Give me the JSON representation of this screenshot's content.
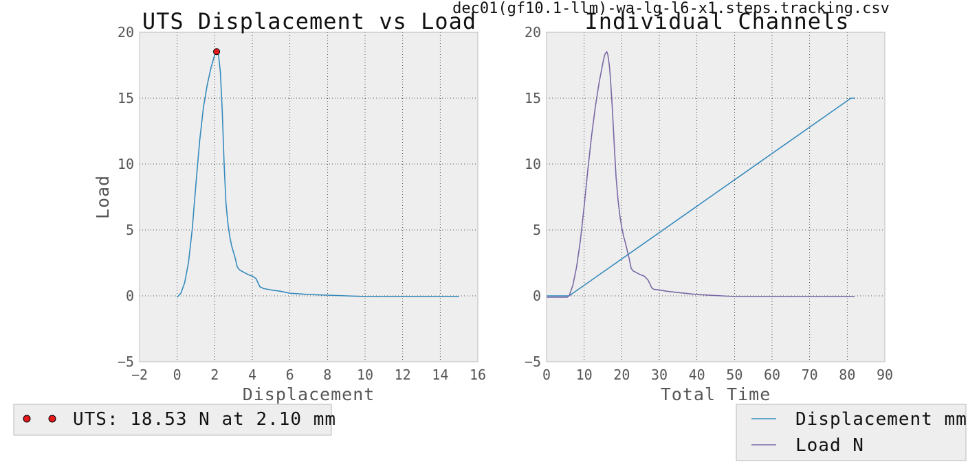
{
  "figure": {
    "suptitle": "dec01(gf10.1-llm)-wa-lg-l6-x1.steps.tracking.csv"
  },
  "chart_data": [
    {
      "type": "line",
      "title": "UTS Displacement vs Load",
      "xlabel": "Displacement",
      "ylabel": "Load",
      "xlim": [
        -2,
        16
      ],
      "ylim": [
        -5,
        20
      ],
      "xticks": [
        -2,
        0,
        2,
        4,
        6,
        8,
        10,
        12,
        14,
        16
      ],
      "yticks": [
        -5,
        0,
        5,
        10,
        15,
        20
      ],
      "grid": true,
      "legend_position": "below-left",
      "series": [
        {
          "color": "#348abd",
          "x": [
            0.0,
            0.2,
            0.4,
            0.6,
            0.8,
            1.0,
            1.2,
            1.4,
            1.6,
            1.8,
            2.0,
            2.1,
            2.2,
            2.3,
            2.4,
            2.5,
            2.6,
            2.7,
            2.8,
            2.9,
            3.0,
            3.1,
            3.2,
            3.3,
            3.4,
            3.6,
            3.8,
            4.0,
            4.2,
            4.4,
            4.6,
            4.8,
            5.0,
            5.5,
            6.0,
            6.5,
            7.0,
            8.0,
            9.0,
            10.0,
            11.0,
            12.0,
            13.0,
            14.0,
            15.0
          ],
          "y": [
            -0.1,
            0.2,
            1.0,
            2.5,
            5.0,
            8.5,
            11.8,
            14.3,
            16.0,
            17.3,
            18.3,
            18.53,
            18.3,
            17.0,
            14.0,
            10.0,
            7.0,
            5.5,
            4.5,
            3.8,
            3.3,
            2.8,
            2.2,
            2.0,
            1.9,
            1.75,
            1.6,
            1.5,
            1.3,
            0.7,
            0.55,
            0.5,
            0.45,
            0.35,
            0.2,
            0.15,
            0.1,
            0.05,
            0.0,
            -0.05,
            -0.05,
            -0.05,
            -0.05,
            -0.05,
            -0.05
          ]
        }
      ],
      "marker": {
        "x": 2.1,
        "y": 18.53,
        "color": "#e41a1c"
      },
      "legend": [
        {
          "label": "UTS: 18.53 N at 2.10 mm",
          "marker": "red-dot"
        }
      ]
    },
    {
      "type": "line",
      "title": "Individual Channels",
      "xlabel": "Total Time",
      "ylabel": "",
      "xlim": [
        0,
        90
      ],
      "ylim": [
        -5,
        20
      ],
      "xticks": [
        0,
        10,
        20,
        30,
        40,
        50,
        60,
        70,
        80,
        90
      ],
      "yticks": [
        -5,
        0,
        5,
        10,
        15,
        20
      ],
      "grid": true,
      "legend_position": "below-right",
      "series": [
        {
          "name": "Displacement mm",
          "color": "#348abd",
          "x": [
            0,
            6,
            81,
            82
          ],
          "y": [
            0,
            0,
            15,
            15
          ]
        },
        {
          "name": "Load N",
          "color": "#7a68a6",
          "x": [
            0,
            5.5,
            6,
            7,
            8,
            9,
            10,
            11,
            12,
            13,
            14,
            15,
            15.5,
            16,
            16.3,
            16.7,
            17,
            17.5,
            18,
            18.5,
            19,
            19.5,
            20,
            20.5,
            21,
            21.5,
            22,
            22.5,
            23,
            24,
            25,
            26,
            27,
            28,
            28.5,
            30,
            32,
            35,
            40,
            50,
            60,
            70,
            80,
            82
          ],
          "y": [
            -0.1,
            -0.1,
            0.0,
            0.8,
            2.2,
            4.2,
            6.8,
            9.6,
            12.2,
            14.4,
            16.2,
            17.7,
            18.3,
            18.53,
            18.3,
            17.5,
            16.5,
            14.2,
            11.5,
            9.0,
            7.3,
            6.1,
            5.2,
            4.5,
            4.0,
            3.4,
            2.8,
            2.1,
            1.9,
            1.75,
            1.6,
            1.5,
            1.2,
            0.6,
            0.5,
            0.45,
            0.35,
            0.25,
            0.1,
            -0.05,
            -0.05,
            -0.05,
            -0.05,
            -0.05
          ]
        }
      ],
      "legend": [
        {
          "label": "Displacement mm",
          "color": "#348abd"
        },
        {
          "label": "Load N",
          "color": "#7a68a6"
        }
      ]
    }
  ]
}
